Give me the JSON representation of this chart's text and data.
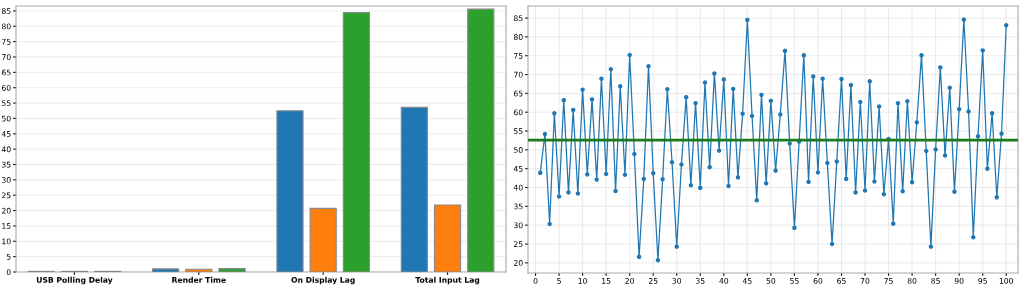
{
  "chart_data": [
    {
      "type": "bar",
      "categories": [
        "USB Polling Delay",
        "Render Time",
        "On Display Lag",
        "Total Input Lag"
      ],
      "series": [
        {
          "color": "#1f77b4",
          "values": [
            0.2,
            1.0,
            52.5,
            53.6
          ]
        },
        {
          "color": "#ff7f0e",
          "values": [
            0.2,
            0.9,
            20.7,
            21.8
          ]
        },
        {
          "color": "#2ca02c",
          "values": [
            0.2,
            1.1,
            84.5,
            85.6
          ]
        }
      ],
      "ylim": [
        0,
        86.6
      ],
      "yticks": [
        0,
        5,
        10,
        15,
        20,
        25,
        30,
        35,
        40,
        45,
        50,
        55,
        60,
        65,
        70,
        75,
        80,
        85
      ],
      "grid": "y"
    },
    {
      "type": "line",
      "x": [
        1,
        2,
        3,
        4,
        5,
        6,
        7,
        8,
        9,
        10,
        11,
        12,
        13,
        14,
        15,
        16,
        17,
        18,
        19,
        20,
        21,
        22,
        23,
        24,
        25,
        26,
        27,
        28,
        29,
        30,
        31,
        32,
        33,
        34,
        35,
        36,
        37,
        38,
        39,
        40,
        41,
        42,
        43,
        44,
        45,
        46,
        47,
        48,
        49,
        50,
        51,
        52,
        53,
        54,
        55,
        56,
        57,
        58,
        59,
        60,
        61,
        62,
        63,
        64,
        65,
        66,
        67,
        68,
        69,
        70,
        71,
        72,
        73,
        74,
        75,
        76,
        77,
        78,
        79,
        80,
        81,
        82,
        83,
        84,
        85,
        86,
        87,
        88,
        89,
        90,
        91,
        92,
        93,
        94,
        95,
        96,
        97,
        98,
        99,
        100
      ],
      "series": [
        {
          "color": "#1f77b4",
          "values": [
            43.9,
            54.2,
            30.3,
            59.7,
            37.6,
            63.2,
            38.7,
            60.6,
            38.4,
            66.0,
            43.5,
            63.4,
            42.1,
            68.9,
            43.6,
            71.4,
            39.1,
            66.9,
            43.4,
            75.2,
            48.9,
            21.6,
            42.3,
            72.2,
            43.8,
            20.7,
            42.2,
            66.1,
            46.7,
            24.3,
            46.1,
            64.0,
            40.6,
            62.4,
            39.9,
            67.9,
            45.4,
            70.3,
            49.8,
            68.7,
            40.4,
            66.2,
            42.7,
            59.6,
            84.5,
            59.0,
            36.6,
            64.6,
            41.1,
            63.0,
            44.5,
            59.4,
            76.3,
            51.7,
            29.3,
            52.2,
            75.1,
            41.5,
            69.5,
            44.0,
            68.9,
            46.5,
            25.0,
            46.9,
            68.8,
            42.3,
            67.2,
            38.7,
            62.7,
            39.2,
            68.2,
            41.6,
            61.5,
            38.2,
            52.9,
            30.4,
            62.4,
            39.0,
            62.9,
            41.4,
            57.3,
            75.1,
            49.7,
            24.3,
            50.1,
            71.9,
            48.5,
            66.5,
            38.9,
            60.8,
            84.6,
            60.2,
            26.8,
            53.6,
            76.4,
            45.0,
            59.7,
            37.4,
            54.3,
            83.1
          ]
        }
      ],
      "marker": "circle",
      "line_style": "solid",
      "ref_lines": [
        {
          "axis": "y",
          "value": 52.6,
          "color": "#1a7a1a"
        }
      ],
      "xlim": [
        -1.6,
        102.5
      ],
      "xticks": [
        0,
        5,
        10,
        15,
        20,
        25,
        30,
        35,
        40,
        45,
        50,
        55,
        60,
        65,
        70,
        75,
        80,
        85,
        90,
        95,
        100
      ],
      "ylim": [
        17.3,
        88.2
      ],
      "yticks": [
        20,
        25,
        30,
        35,
        40,
        45,
        50,
        55,
        60,
        65,
        70,
        75,
        80,
        85
      ],
      "grid": true
    }
  ]
}
